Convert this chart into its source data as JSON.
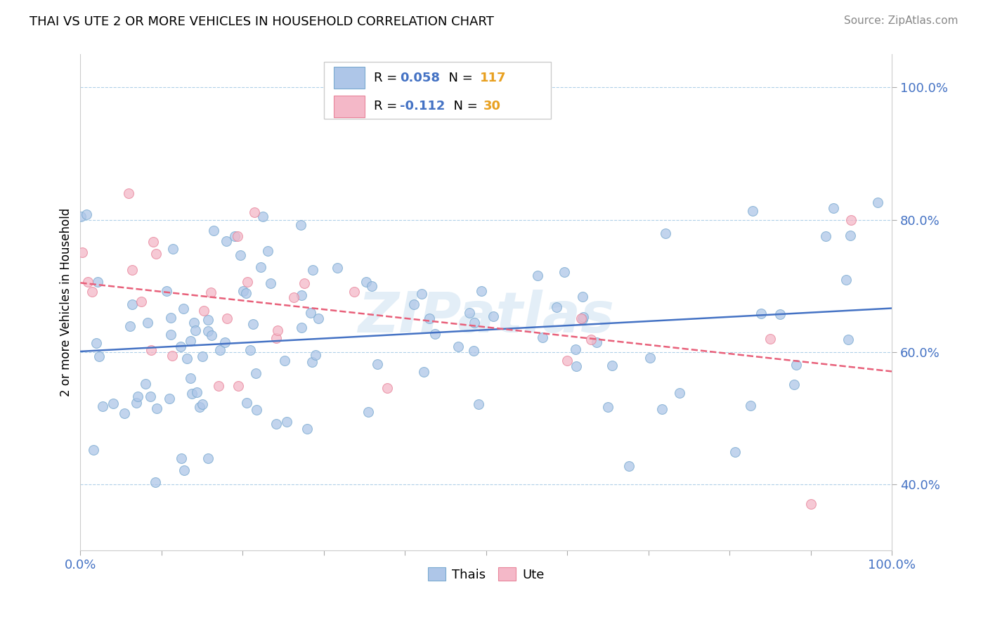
{
  "title": "THAI VS UTE 2 OR MORE VEHICLES IN HOUSEHOLD CORRELATION CHART",
  "source": "Source: ZipAtlas.com",
  "ylabel": "2 or more Vehicles in Household",
  "thai_R": 0.058,
  "thai_N": 117,
  "ute_R": -0.112,
  "ute_N": 30,
  "thai_color": "#aec6e8",
  "ute_color": "#f4b8c8",
  "thai_edge_color": "#7aaad0",
  "ute_edge_color": "#e8849a",
  "thai_line_color": "#4472c4",
  "ute_line_color": "#e8607a",
  "r_value_color": "#4472c4",
  "n_value_color": "#e8a020",
  "watermark": "ZIPatlas",
  "ylim_min": 0.3,
  "ylim_max": 1.05,
  "xlim_min": 0.0,
  "xlim_max": 1.0,
  "ytick_values": [
    0.4,
    0.6,
    0.8,
    1.0
  ],
  "ytick_labels": [
    "40.0%",
    "60.0%",
    "80.0%",
    "100.0%"
  ],
  "xtick_labels_left": "0.0%",
  "xtick_labels_right": "100.0%",
  "scatter_marker_size": 100,
  "scatter_alpha": 0.75,
  "line_width": 1.8
}
